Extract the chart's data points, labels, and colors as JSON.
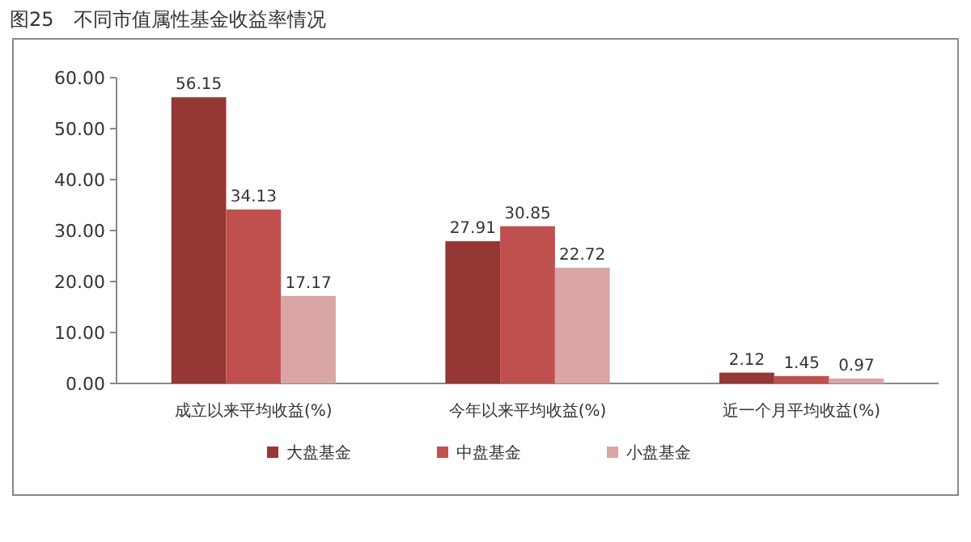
{
  "chart_data": {
    "type": "bar",
    "title": "图25　不同市值属性基金收益率情况",
    "categories": [
      "成立以来平均收益(%)",
      "今年以来平均收益(%)",
      "近一个月平均收益(%)"
    ],
    "series": [
      {
        "name": "大盘基金",
        "color": "#953735",
        "values": [
          56.15,
          27.91,
          2.12
        ]
      },
      {
        "name": "中盘基金",
        "color": "#c0504d",
        "values": [
          34.13,
          30.85,
          1.45
        ]
      },
      {
        "name": "小盘基金",
        "color": "#d9a5a5",
        "values": [
          17.17,
          22.72,
          0.97
        ]
      }
    ],
    "ylim": [
      0,
      60
    ],
    "yticks": [
      {
        "value": 0,
        "label": "0.00"
      },
      {
        "value": 10,
        "label": "10.00"
      },
      {
        "value": 20,
        "label": "20.00"
      },
      {
        "value": 30,
        "label": "30.00"
      },
      {
        "value": 40,
        "label": "40.00"
      },
      {
        "value": 50,
        "label": "50.00"
      },
      {
        "value": 60,
        "label": "60.00"
      }
    ],
    "data_labels": true,
    "legend": "bottom",
    "grid": false
  }
}
